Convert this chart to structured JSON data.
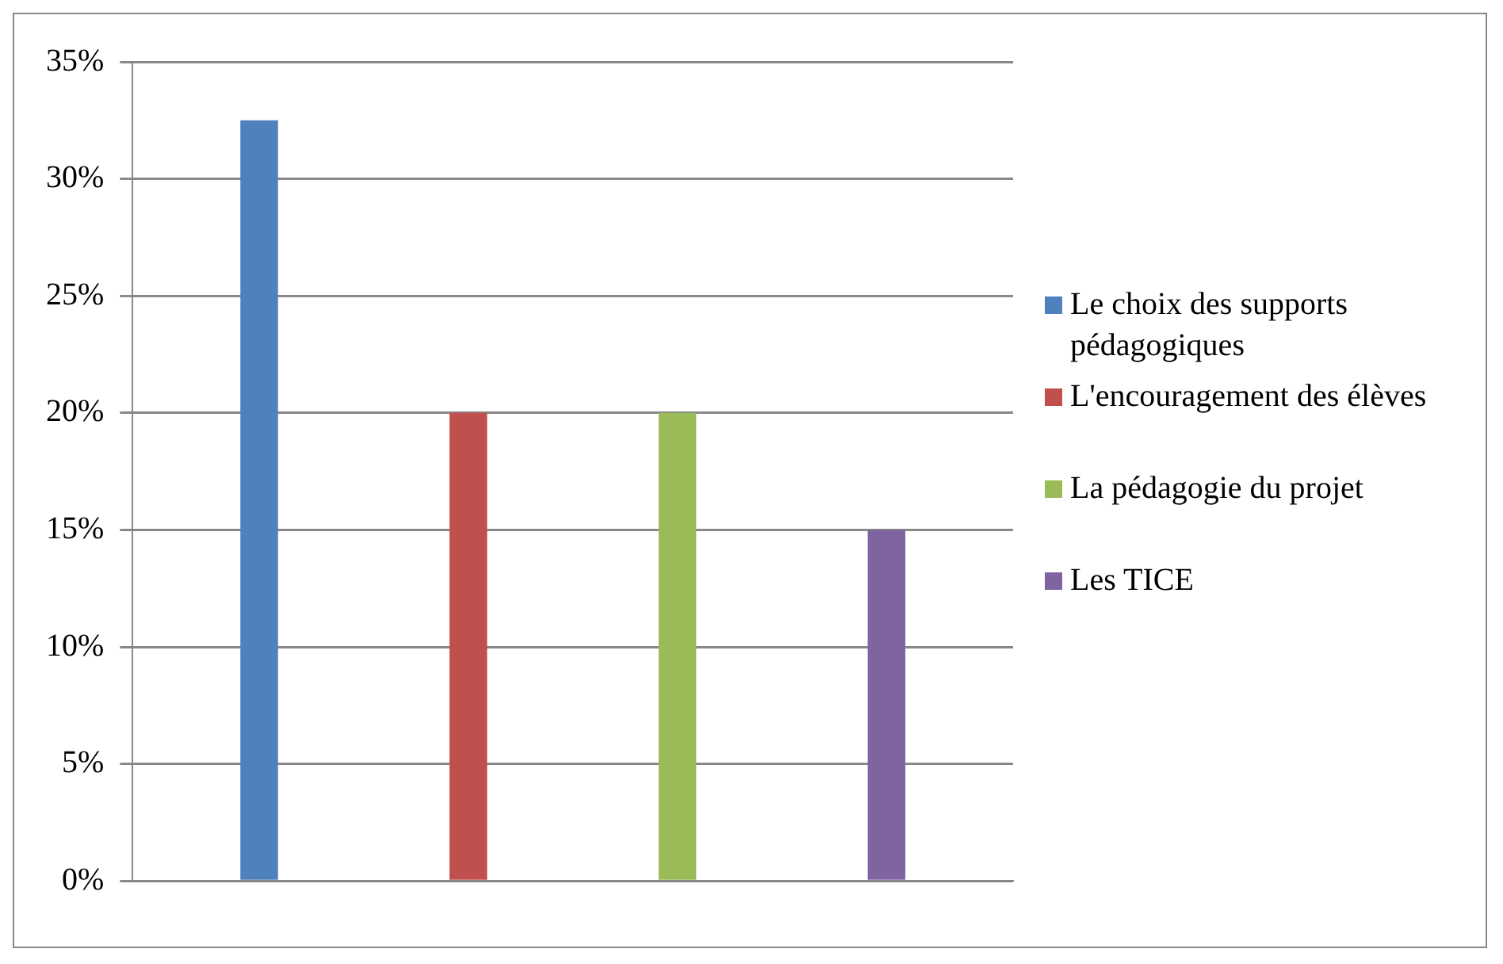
{
  "chart_data": {
    "type": "bar",
    "categories": [
      null
    ],
    "series": [
      {
        "name": "Le choix des supports pédagogiques",
        "color": "#4f81bd",
        "values": [
          32.5
        ]
      },
      {
        "name": "L'encouragement des élèves",
        "color": "#c0504d",
        "values": [
          20
        ]
      },
      {
        "name": "La pédagogie du projet",
        "color": "#9bbb59",
        "values": [
          20
        ]
      },
      {
        "name": "Les TICE",
        "color": "#8064a2",
        "values": [
          15
        ]
      }
    ],
    "ylim": [
      0,
      35
    ],
    "yticks": [
      {
        "value": 0,
        "label": "0%"
      },
      {
        "value": 5,
        "label": "5%"
      },
      {
        "value": 10,
        "label": "10%"
      },
      {
        "value": 15,
        "label": "15%"
      },
      {
        "value": 20,
        "label": "20%"
      },
      {
        "value": 25,
        "label": "25%"
      },
      {
        "value": 30,
        "label": "30%"
      },
      {
        "value": 35,
        "label": "35%"
      }
    ],
    "grid": "y",
    "legend": "right"
  }
}
